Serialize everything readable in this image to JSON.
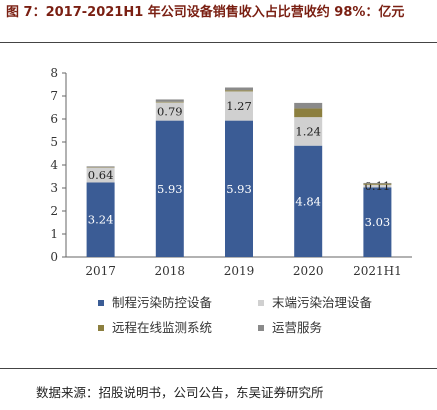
{
  "title": "图 7：2017-2021H1 年公司设备销售收入占比营收约 98%：亿元",
  "source": "数据来源：招股说明书，公司公告，东吴证券研究所",
  "chart_data": {
    "type": "bar",
    "stacked": true,
    "title": "",
    "xlabel": "",
    "ylabel": "",
    "ylim": [
      0,
      8
    ],
    "yticks": [
      "0",
      "1",
      "2",
      "3",
      "4",
      "5",
      "6",
      "7",
      "8"
    ],
    "categories": [
      "2017",
      "2018",
      "2019",
      "2020",
      "2021H1"
    ],
    "series": [
      {
        "name": "制程污染防控设备",
        "color": "#3b5c95",
        "values": [
          3.24,
          5.93,
          5.93,
          4.84,
          3.03
        ],
        "labels": [
          "3.24",
          "5.93",
          "5.93",
          "4.84",
          "3.03"
        ]
      },
      {
        "name": "末端污染治理设备",
        "color": "#d0d0d0",
        "values": [
          0.64,
          0.79,
          1.27,
          1.24,
          0.11
        ],
        "labels": [
          "0.64",
          "0.79",
          "1.27",
          "1.24",
          "0.11"
        ]
      },
      {
        "name": "远程在线监测系统",
        "color": "#8c7f3f",
        "values": [
          0.02,
          0.03,
          0.05,
          0.38,
          0.05
        ],
        "labels": [
          "",
          "",
          "",
          "",
          ""
        ]
      },
      {
        "name": "运营服务",
        "color": "#8a8a8a",
        "values": [
          0.04,
          0.1,
          0.12,
          0.24,
          0.03
        ],
        "labels": [
          "",
          "",
          "",
          "",
          ""
        ]
      }
    ],
    "legend_position": "bottom",
    "grid": false
  }
}
